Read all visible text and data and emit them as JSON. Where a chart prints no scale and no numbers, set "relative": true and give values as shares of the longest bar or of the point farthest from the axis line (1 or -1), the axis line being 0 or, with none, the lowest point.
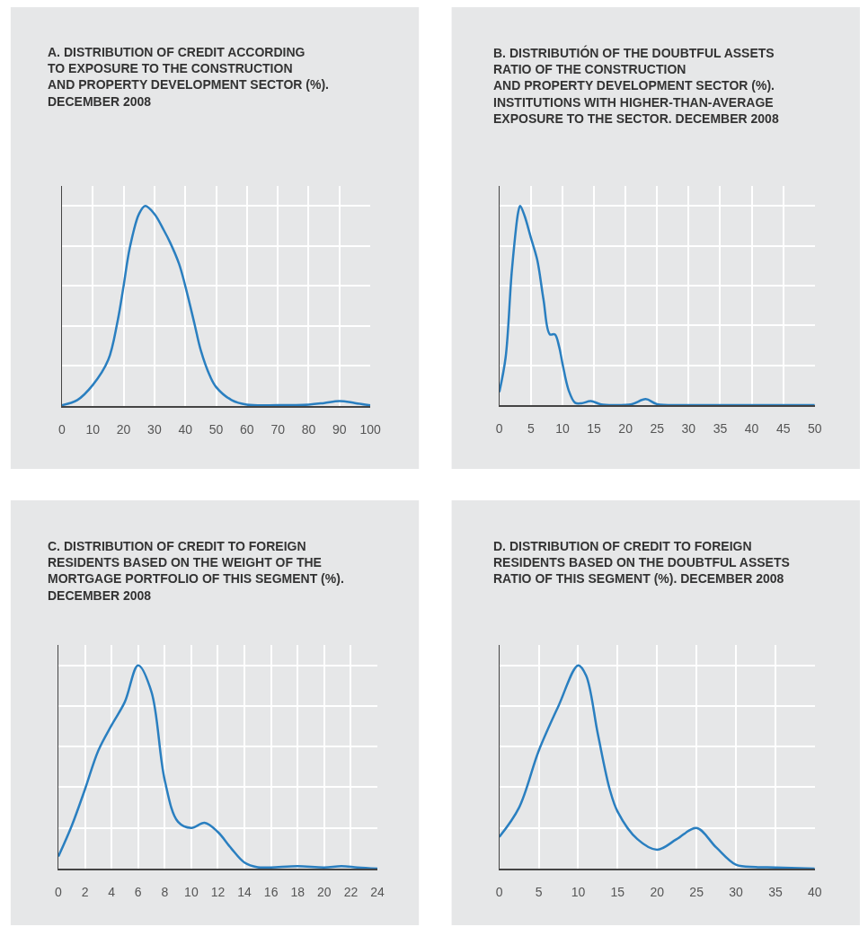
{
  "chart_data": [
    {
      "type": "line",
      "title": "A. DISTRIBUTION OF CREDIT ACCORDING\nTO EXPOSURE TO THE CONSTRUCTION\nAND PROPERTY DEVELOPMENT SECTOR (%).\nDECEMBER 2008",
      "relative": true,
      "grid": true,
      "color": "#2a7fc0",
      "xlim": [
        0,
        100
      ],
      "xticks": [
        0,
        10,
        20,
        30,
        40,
        50,
        60,
        70,
        80,
        90,
        100
      ],
      "x": [
        0,
        5,
        10,
        15,
        18,
        20,
        22,
        25,
        27,
        30,
        33,
        35,
        38,
        40,
        43,
        45,
        48,
        50,
        55,
        60,
        70,
        80,
        85,
        90,
        95,
        100
      ],
      "values": [
        0.004,
        0.03,
        0.105,
        0.23,
        0.42,
        0.6,
        0.79,
        0.96,
        1,
        0.96,
        0.88,
        0.82,
        0.71,
        0.6,
        0.41,
        0.28,
        0.15,
        0.095,
        0.03,
        0.007,
        0.004,
        0.007,
        0.015,
        0.025,
        0.015,
        0.003
      ]
    },
    {
      "type": "line",
      "title": "B. DISTRIBUTIÓN OF THE DOUBTFUL ASSETS\nRATIO OF THE CONSTRUCTION\nAND PROPERTY DEVELOPMENT SECTOR (%).\nINSTITUTIONS WITH HIGHER-THAN-AVERAGE\nEXPOSURE TO THE SECTOR. DECEMBER 2008",
      "relative": true,
      "grid": true,
      "color": "#2a7fc0",
      "xlim": [
        0,
        50
      ],
      "xticks": [
        0,
        5,
        10,
        15,
        20,
        25,
        30,
        35,
        40,
        45,
        50
      ],
      "x": [
        0,
        1,
        2,
        3,
        3.3,
        4,
        5,
        6,
        7,
        8,
        8.8,
        9.5,
        10,
        11,
        12,
        13,
        14.5,
        16,
        18,
        21,
        23.2,
        25,
        30,
        40,
        50
      ],
      "values": [
        0.066,
        0.24,
        0.68,
        0.97,
        1,
        0.95,
        0.84,
        0.73,
        0.53,
        0.355,
        0.355,
        0.29,
        0.21,
        0.073,
        0.012,
        0.009,
        0.02,
        0.005,
        0,
        0.005,
        0.03,
        0.005,
        0,
        0,
        0
      ]
    },
    {
      "type": "line",
      "title": "C. DISTRIBUTION OF CREDIT TO FOREIGN\nRESIDENTS BASED ON THE WEIGHT OF THE\nMORTGAGE PORTFOLIO OF THIS SEGMENT (%).\nDECEMBER 2008",
      "relative": true,
      "grid": true,
      "color": "#2a7fc0",
      "xlim": [
        0,
        24
      ],
      "xticks": [
        0,
        2,
        4,
        6,
        8,
        10,
        12,
        14,
        16,
        18,
        20,
        22,
        24
      ],
      "x": [
        0,
        1,
        2,
        3,
        4,
        5,
        6,
        7,
        8,
        9,
        10,
        11,
        12,
        13,
        14,
        15,
        16,
        18,
        20,
        21.3,
        22.5,
        24
      ],
      "values": [
        0.06,
        0.21,
        0.39,
        0.58,
        0.705,
        0.82,
        1,
        0.87,
        0.435,
        0.23,
        0.2,
        0.225,
        0.18,
        0.1,
        0.03,
        0.007,
        0.006,
        0.012,
        0.006,
        0.012,
        0.006,
        0
      ]
    },
    {
      "type": "line",
      "title": "D. DISTRIBUTION OF CREDIT TO FOREIGN\nRESIDENTS BASED ON THE DOUBTFUL ASSETS\nRATIO OF THIS SEGMENT (%). DECEMBER 2008",
      "relative": true,
      "grid": true,
      "color": "#2a7fc0",
      "xlim": [
        0,
        40
      ],
      "xticks": [
        0,
        5,
        10,
        15,
        20,
        25,
        30,
        35,
        40
      ],
      "x": [
        0,
        2.5,
        5,
        7.5,
        10,
        11,
        12.5,
        14,
        15,
        17.5,
        20,
        22.5,
        25,
        27.5,
        30,
        32.5,
        35,
        40
      ],
      "values": [
        0.156,
        0.3,
        0.58,
        0.8,
        1,
        0.95,
        0.66,
        0.39,
        0.28,
        0.145,
        0.093,
        0.145,
        0.2,
        0.104,
        0.019,
        0.008,
        0.006,
        0
      ]
    }
  ]
}
